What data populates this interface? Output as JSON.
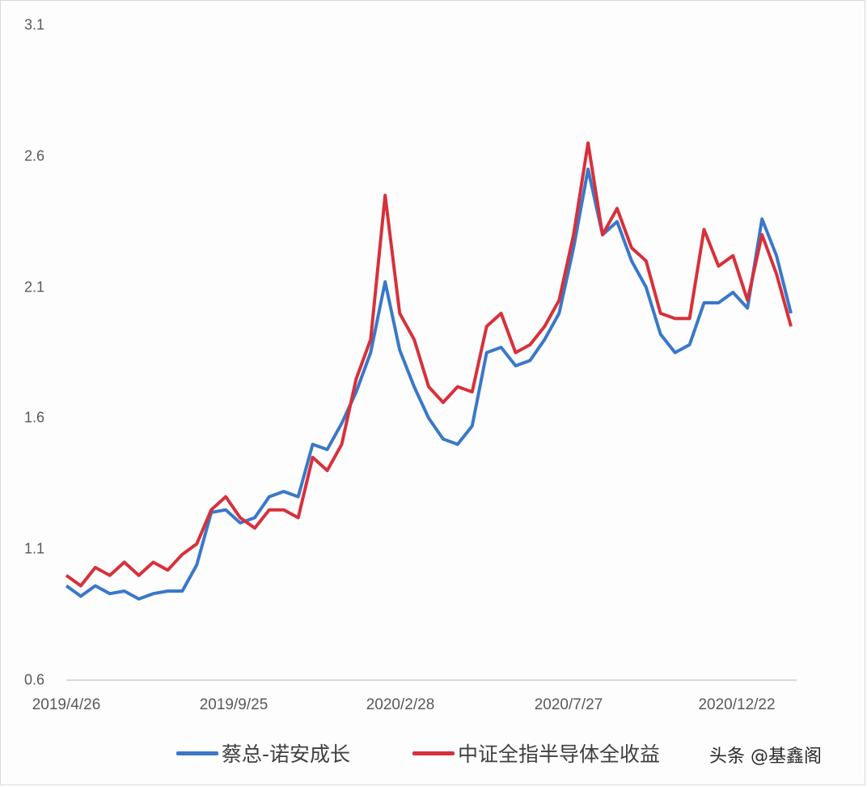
{
  "chart_data": {
    "type": "line",
    "title": "",
    "xlabel": "",
    "ylabel": "",
    "ylim": [
      0.6,
      3.1
    ],
    "yticks": [
      "3.1",
      "2.6",
      "2.1",
      "1.6",
      "1.1",
      "0.6"
    ],
    "ytick_values": [
      3.1,
      2.6,
      2.1,
      1.6,
      1.1,
      0.6
    ],
    "xticks": [
      "2019/4/26",
      "2019/9/25",
      "2020/2/28",
      "2020/7/27",
      "2020/12/22"
    ],
    "grid": false,
    "legend_position": "bottom",
    "x": [
      "2019/4/26",
      "2019/5/10",
      "2019/5/24",
      "2019/6/7",
      "2019/6/21",
      "2019/7/5",
      "2019/7/19",
      "2019/8/2",
      "2019/8/16",
      "2019/8/30",
      "2019/9/13",
      "2019/9/25",
      "2019/10/11",
      "2019/10/25",
      "2019/11/8",
      "2019/11/22",
      "2019/12/6",
      "2019/12/20",
      "2020/1/3",
      "2020/1/17",
      "2020/2/7",
      "2020/2/21",
      "2020/2/28",
      "2020/3/6",
      "2020/3/13",
      "2020/3/20",
      "2020/3/27",
      "2020/4/10",
      "2020/4/24",
      "2020/5/8",
      "2020/5/22",
      "2020/6/5",
      "2020/6/19",
      "2020/7/3",
      "2020/7/10",
      "2020/7/17",
      "2020/7/27",
      "2020/8/7",
      "2020/8/21",
      "2020/9/4",
      "2020/9/18",
      "2020/10/9",
      "2020/10/23",
      "2020/11/6",
      "2020/11/20",
      "2020/12/4",
      "2020/12/11",
      "2020/12/22",
      "2021/1/8",
      "2021/1/15",
      "2021/1/22"
    ],
    "series": [
      {
        "name": "蔡总-诺安成长",
        "color": "#3a78c9",
        "values": [
          0.96,
          0.92,
          0.96,
          0.93,
          0.94,
          0.91,
          0.93,
          0.94,
          0.94,
          1.04,
          1.24,
          1.25,
          1.2,
          1.22,
          1.3,
          1.32,
          1.3,
          1.5,
          1.48,
          1.58,
          1.7,
          1.85,
          2.12,
          1.86,
          1.72,
          1.6,
          1.52,
          1.5,
          1.57,
          1.85,
          1.87,
          1.8,
          1.82,
          1.9,
          2.0,
          2.25,
          2.55,
          2.3,
          2.35,
          2.2,
          2.1,
          1.92,
          1.85,
          1.88,
          2.04,
          2.04,
          2.08,
          2.02,
          2.36,
          2.22,
          2.0
        ]
      },
      {
        "name": "中证全指半导体全收益",
        "color": "#d8303a",
        "values": [
          1.0,
          0.96,
          1.03,
          1.0,
          1.05,
          1.0,
          1.05,
          1.02,
          1.08,
          1.12,
          1.25,
          1.3,
          1.22,
          1.18,
          1.25,
          1.25,
          1.22,
          1.45,
          1.4,
          1.5,
          1.75,
          1.9,
          2.45,
          2.0,
          1.9,
          1.72,
          1.66,
          1.72,
          1.7,
          1.95,
          2.0,
          1.85,
          1.88,
          1.95,
          2.05,
          2.3,
          2.65,
          2.3,
          2.4,
          2.25,
          2.2,
          2.0,
          1.98,
          1.98,
          2.32,
          2.18,
          2.22,
          2.05,
          2.3,
          2.15,
          1.95
        ]
      }
    ]
  },
  "legend": {
    "items": [
      {
        "label": "蔡总-诺安成长",
        "color": "#3a78c9"
      },
      {
        "label": "中证全指半导体全收益",
        "color": "#d8303a"
      }
    ]
  },
  "watermark": "头条 @基鑫阁"
}
